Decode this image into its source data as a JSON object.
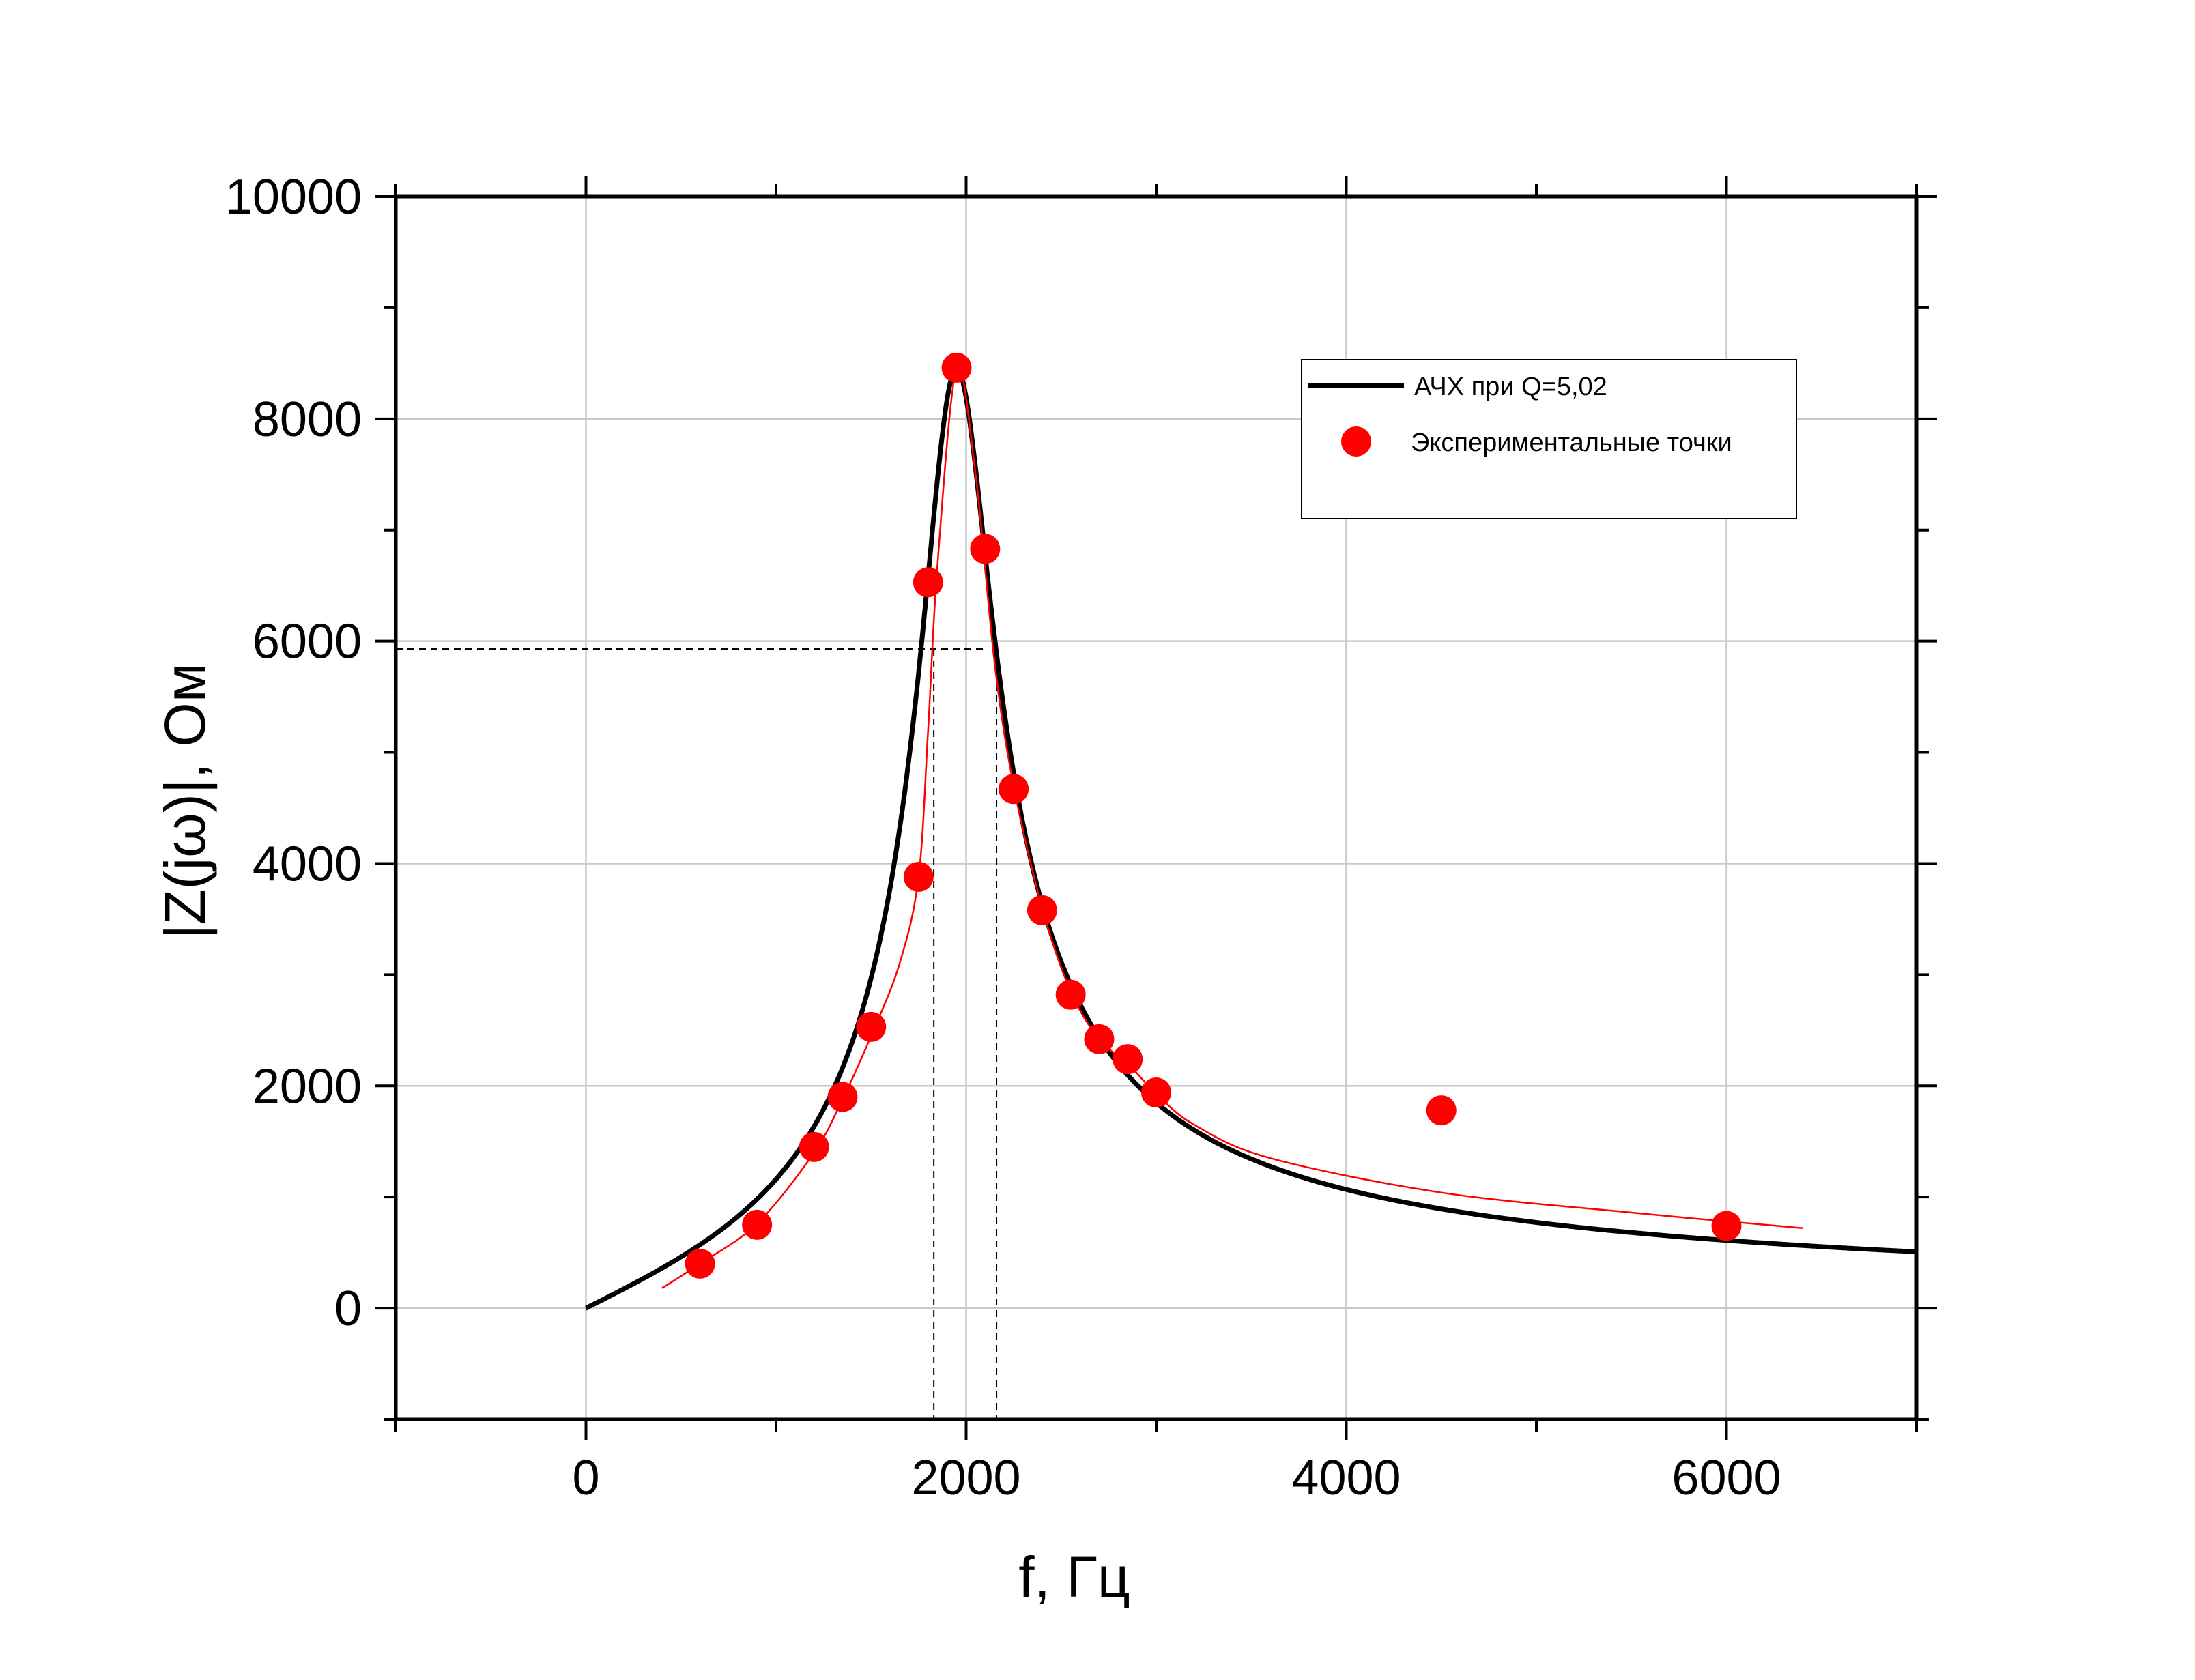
{
  "chart_data": {
    "type": "line",
    "xlabel": "f, Гц",
    "ylabel": "|Z(jω)|, Ом",
    "xlim": [
      -1000,
      7000
    ],
    "ylim": [
      -1000,
      10000
    ],
    "x_ticks": [
      0,
      2000,
      4000,
      6000
    ],
    "x_tick_labels": [
      "0",
      "2000",
      "4000",
      "6000"
    ],
    "y_ticks": [
      0,
      2000,
      4000,
      6000,
      8000,
      10000
    ],
    "y_tick_labels": [
      "0",
      "2000",
      "4000",
      "6000",
      "8000",
      "10000"
    ],
    "grid": true,
    "legend_position": "top-right",
    "legend": [
      {
        "label": "АЧХ при Q=5,02",
        "kind": "line",
        "color": "#000000"
      },
      {
        "label": "Экспериментальные точки",
        "kind": "marker",
        "color": "#ff0000"
      }
    ],
    "series": [
      {
        "name": "АЧХ при Q=5,02",
        "kind": "curve",
        "color": "#000000",
        "peak_frequency": 1950,
        "peak_value": 8450,
        "Q": 5.02,
        "x_range": [
          0,
          7000
        ]
      },
      {
        "name": "Экспериментальные точки",
        "kind": "scatter",
        "color": "#ff0000",
        "x": [
          600,
          900,
          1200,
          1350,
          1500,
          1750,
          1800,
          1950,
          2100,
          2250,
          2400,
          2550,
          2700,
          2850,
          3000,
          4500,
          6000
        ],
        "y": [
          400,
          750,
          1450,
          1900,
          2530,
          3880,
          6530,
          8460,
          6830,
          4670,
          3580,
          2820,
          2420,
          2240,
          1940,
          1780,
          740
        ]
      },
      {
        "kind": "smooth-line",
        "color": "#ff0000",
        "x": [
          400,
          600,
          900,
          1200,
          1350,
          1500,
          1650,
          1750,
          1800,
          1850,
          1950,
          2050,
          2150,
          2250,
          2400,
          2550,
          2700,
          2850,
          3000,
          3200,
          3600,
          4500,
          5500,
          6400
        ],
        "y": [
          180,
          400,
          760,
          1400,
          1880,
          2450,
          3100,
          3880,
          5200,
          6700,
          8450,
          7500,
          5800,
          4700,
          3600,
          2850,
          2420,
          2200,
          1930,
          1650,
          1350,
          1040,
          860,
          720
        ]
      }
    ],
    "bandwidth_guides": {
      "level": 5930,
      "f_low": 1830,
      "f_high": 2160
    }
  }
}
